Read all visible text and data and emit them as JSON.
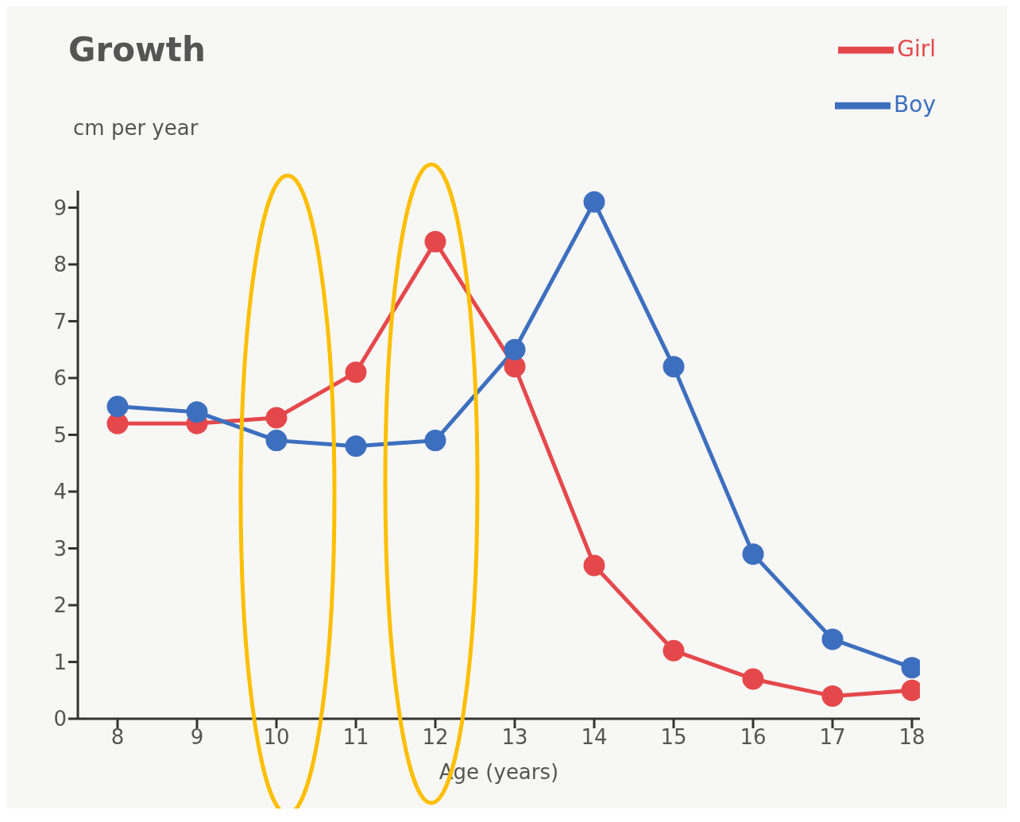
{
  "chart_data": {
    "type": "line",
    "title": "Growth",
    "ylabel": "cm per year",
    "xlabel": "Age (years)",
    "x": [
      8,
      9,
      10,
      11,
      12,
      13,
      14,
      15,
      16,
      17,
      18
    ],
    "series": [
      {
        "name": "Girl",
        "color": "#e5484b",
        "values": [
          5.2,
          5.2,
          5.3,
          6.1,
          8.4,
          6.2,
          2.7,
          1.2,
          0.7,
          0.4,
          0.5
        ]
      },
      {
        "name": "Boy",
        "color": "#3d6fbf",
        "values": [
          5.5,
          5.4,
          4.9,
          4.8,
          4.9,
          6.5,
          9.1,
          6.2,
          2.9,
          1.4,
          0.9
        ]
      }
    ],
    "xlim": [
      7.5,
      18.1
    ],
    "xticks": [
      8,
      9,
      10,
      11,
      12,
      13,
      14,
      15,
      16,
      17,
      18
    ],
    "ylim": [
      0,
      9.3
    ],
    "yticks": [
      0,
      1,
      2,
      3,
      4,
      5,
      6,
      7,
      8,
      9
    ],
    "grid": false,
    "legend": "top right",
    "marker": "circle",
    "line_style": "solid"
  }
}
